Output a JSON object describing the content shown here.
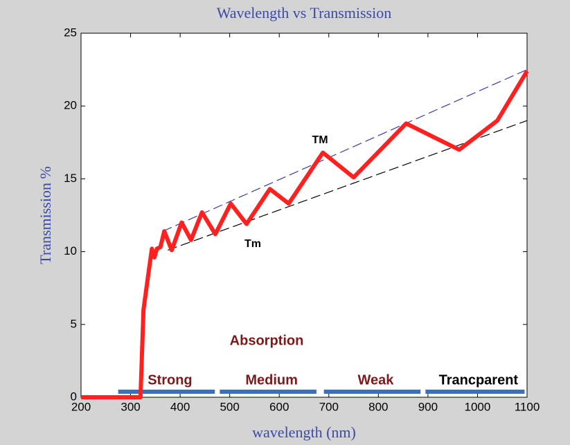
{
  "chart_data": {
    "type": "line",
    "title": "Wavelength vs Transmission",
    "xlabel": "wavelength (nm)",
    "ylabel": "Transmission %",
    "xlim": [
      200,
      1100
    ],
    "ylim": [
      0,
      25
    ],
    "xticks": [
      200,
      300,
      400,
      500,
      600,
      700,
      800,
      900,
      1000,
      1100
    ],
    "yticks": [
      0,
      5,
      10,
      15,
      20,
      25
    ],
    "series": [
      {
        "color": "#ff2020",
        "x": [
          200,
          320,
          323,
          326,
          332,
          338,
          343,
          348,
          353,
          360,
          368,
          383,
          403,
          422,
          444,
          471,
          502,
          534,
          581,
          619,
          688,
          750,
          856,
          963,
          1040,
          1100
        ],
        "values": [
          0,
          0,
          3,
          6,
          7.5,
          9,
          10.2,
          9.6,
          10.2,
          10.3,
          11.4,
          10.1,
          12,
          10.8,
          12.7,
          11.2,
          13.3,
          11.9,
          14.3,
          13.3,
          16.8,
          15.1,
          18.8,
          17,
          19,
          22.4
        ]
      }
    ],
    "envelopes": [
      {
        "color": "#3a3aa0",
        "x": [
          365,
          1100
        ],
        "values": [
          11.4,
          22.5
        ]
      },
      {
        "color": "#000000",
        "x": [
          375,
          1100
        ],
        "values": [
          10.1,
          19
        ]
      }
    ],
    "regions": [
      {
        "label": "Strong",
        "x": [
          275,
          470
        ],
        "color": "#7a1a1a"
      },
      {
        "label": "Medium",
        "x": [
          480,
          675
        ],
        "color": "#7a1a1a"
      },
      {
        "label": "Weak",
        "x": [
          690,
          885
        ],
        "color": "#7a1a1a"
      },
      {
        "label": "Trancparent",
        "x": [
          895,
          1095
        ],
        "color": "#000000"
      }
    ],
    "annotations": [
      "TM",
      "Tm",
      "Absorption"
    ]
  }
}
